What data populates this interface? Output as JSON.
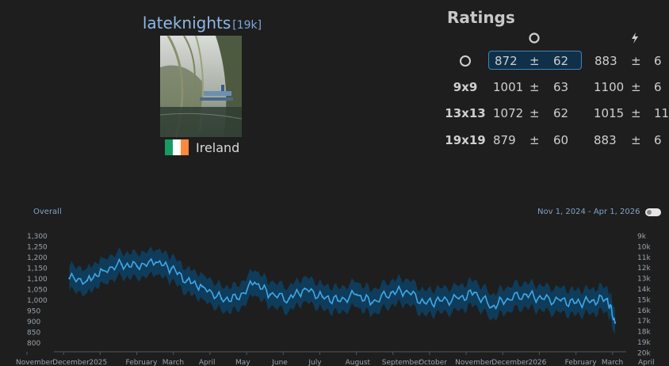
{
  "profile": {
    "username": "lateknights",
    "rank": "[19k]",
    "country": "Ireland",
    "flag_colors": [
      "#169b62",
      "#ffffff",
      "#ff883e"
    ]
  },
  "ratings": {
    "title": "Ratings",
    "columns": [
      {
        "icon": "circle-icon"
      },
      {
        "icon": "lightning-icon"
      }
    ],
    "rows": [
      {
        "size": "",
        "icon": "circle-icon",
        "c1": {
          "rating": "872",
          "pm": "±",
          "dev": "62"
        },
        "c2": {
          "rating": "883",
          "pm": "±",
          "dev": "6"
        }
      },
      {
        "size": "9x9",
        "c1": {
          "rating": "1001",
          "pm": "±",
          "dev": "63"
        },
        "c2": {
          "rating": "1100",
          "pm": "±",
          "dev": "6"
        }
      },
      {
        "size": "13x13",
        "c1": {
          "rating": "1072",
          "pm": "±",
          "dev": "62"
        },
        "c2": {
          "rating": "1015",
          "pm": "±",
          "dev": "11"
        }
      },
      {
        "size": "19x19",
        "c1": {
          "rating": "879",
          "pm": "±",
          "dev": "60"
        },
        "c2": {
          "rating": "883",
          "pm": "±",
          "dev": "6"
        }
      }
    ]
  },
  "chart": {
    "title": "Overall",
    "date_range": "Nov 1, 2024 - Apr 1, 2026"
  },
  "chart_data": {
    "type": "area",
    "title": "Overall",
    "y_left_ticks": [
      "1,300",
      "1,250",
      "1,200",
      "1,150",
      "1,100",
      "1,050",
      "1,000",
      "950",
      "900",
      "850",
      "800"
    ],
    "y_right_ticks": [
      "9k",
      "10k",
      "11k",
      "12k",
      "13k",
      "14k",
      "15k",
      "16k",
      "17k",
      "18k",
      "19k",
      "20k"
    ],
    "ylim": [
      780,
      1310
    ],
    "x_ticks": [
      "November",
      "December",
      "2025",
      "February",
      "March",
      "April",
      "May",
      "June",
      "July",
      "August",
      "September",
      "October",
      "November",
      "December",
      "2026",
      "February",
      "March",
      "April"
    ],
    "x": [
      "2024-11-15",
      "2024-12-01",
      "2024-12-15",
      "2025-01-01",
      "2025-01-15",
      "2025-02-01",
      "2025-02-15",
      "2025-03-01",
      "2025-03-15",
      "2025-04-01",
      "2025-04-15",
      "2025-05-01",
      "2025-05-15",
      "2025-06-01",
      "2025-06-15",
      "2025-07-01",
      "2025-07-15",
      "2025-08-01",
      "2025-08-15",
      "2025-09-01",
      "2025-09-15",
      "2025-10-01",
      "2025-10-15",
      "2025-11-01",
      "2025-11-15",
      "2025-12-01",
      "2025-12-15",
      "2026-01-01",
      "2026-01-15",
      "2026-02-01",
      "2026-02-15",
      "2026-03-01",
      "2026-03-15",
      "2026-03-22"
    ],
    "series": [
      {
        "values": [
          1100,
          1090,
          1140,
          1170,
          1160,
          1180,
          1150,
          1090,
          1060,
          1000,
          1000,
          1080,
          1020,
          1000,
          1050,
          1010,
          990,
          1020,
          980,
          1030,
          1040,
          980,
          990,
          1000,
          1030,
          960,
          1000,
          1020,
          1000,
          990,
          980,
          990,
          1000,
          880
        ],
        "band": 62,
        "line_color": "#3fa8ea",
        "band_color": "#0f3e5e"
      }
    ]
  }
}
